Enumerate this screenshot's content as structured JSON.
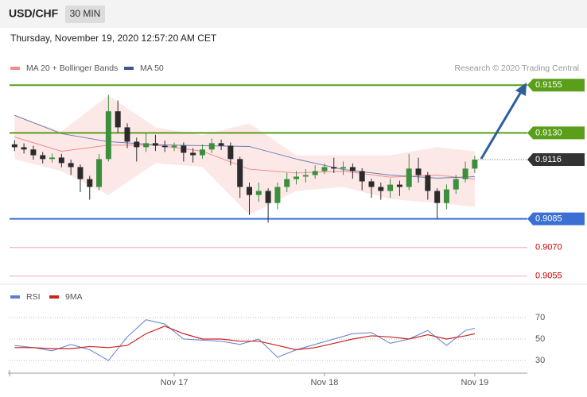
{
  "header": {
    "symbol": "USD/CHF",
    "interval": "30 MIN",
    "datetime": "Thursday, November 19, 2020 12:57:20 AM CET"
  },
  "chart_data": [
    {
      "type": "candlestick",
      "legend": [
        "MA 20 + Bollinger Bands",
        "MA 50"
      ],
      "legend_colors": [
        "#f08c8c",
        "#3a5a8c"
      ],
      "credit": "Research © 2020 Trading Central",
      "up_color": "#3c8f3c",
      "down_color": "#2b2b2b",
      "xlim": [
        -26.3,
        56.4
      ],
      "ylim": [
        0.9052,
        0.9158
      ],
      "x": [
        -25.5,
        -24,
        -22.5,
        -21,
        -19.5,
        -18,
        -16.5,
        -15,
        -13.5,
        -12,
        -10.5,
        -9,
        -7.5,
        -6,
        -4.5,
        -3,
        -1.5,
        0,
        1.5,
        3,
        4.5,
        6,
        7.5,
        9,
        10.5,
        12,
        13.5,
        15,
        16.5,
        18,
        19.5,
        21,
        22.5,
        24,
        25.5,
        27,
        28.5,
        30,
        31.5,
        33,
        34.5,
        36,
        37.5,
        39,
        40.5,
        42,
        43.5,
        45,
        46.5,
        48
      ],
      "candles": [
        [
          0.9124,
          0.91262,
          0.91205,
          0.91225
        ],
        [
          0.91225,
          0.91245,
          0.91192,
          0.91213
        ],
        [
          0.91213,
          0.91232,
          0.9116,
          0.91183
        ],
        [
          0.91183,
          0.912,
          0.9114,
          0.91163
        ],
        [
          0.91163,
          0.91192,
          0.91145,
          0.91171
        ],
        [
          0.91171,
          0.9119,
          0.9112,
          0.91142
        ],
        [
          0.91142,
          0.9116,
          0.9108,
          0.91121
        ],
        [
          0.91121,
          0.91135,
          0.9099,
          0.91058
        ],
        [
          0.91058,
          0.91075,
          0.9095,
          0.91017
        ],
        [
          0.91017,
          0.9119,
          0.91,
          0.91163
        ],
        [
          0.91163,
          0.915,
          0.9115,
          0.91413
        ],
        [
          0.91413,
          0.9147,
          0.913,
          0.91329
        ],
        [
          0.91329,
          0.9135,
          0.9122,
          0.91254
        ],
        [
          0.91254,
          0.91275,
          0.9115,
          0.91225
        ],
        [
          0.91225,
          0.913,
          0.912,
          0.91246
        ],
        [
          0.91246,
          0.9129,
          0.91205,
          0.91233
        ],
        [
          0.91233,
          0.9126,
          0.912,
          0.91225
        ],
        [
          0.91225,
          0.9125,
          0.91205,
          0.91233
        ],
        [
          0.91233,
          0.9125,
          0.9115,
          0.91196
        ],
        [
          0.91196,
          0.9122,
          0.91145,
          0.91183
        ],
        [
          0.91183,
          0.9124,
          0.91165,
          0.91213
        ],
        [
          0.91213,
          0.9127,
          0.91195,
          0.91246
        ],
        [
          0.91246,
          0.91265,
          0.9121,
          0.91233
        ],
        [
          0.91233,
          0.9125,
          0.9113,
          0.91163
        ],
        [
          0.91163,
          0.91175,
          0.9096,
          0.91017
        ],
        [
          0.91017,
          0.9104,
          0.9087,
          0.90975
        ],
        [
          0.90975,
          0.9104,
          0.9094,
          0.90996
        ],
        [
          0.90996,
          0.9101,
          0.9083,
          0.90933
        ],
        [
          0.90933,
          0.9104,
          0.909,
          0.91017
        ],
        [
          0.91017,
          0.9109,
          0.9099,
          0.91058
        ],
        [
          0.91058,
          0.911,
          0.9103,
          0.91071
        ],
        [
          0.91071,
          0.9111,
          0.9104,
          0.91079
        ],
        [
          0.91079,
          0.9113,
          0.9106,
          0.911
        ],
        [
          0.911,
          0.9114,
          0.91085,
          0.91121
        ],
        [
          0.91121,
          0.9117,
          0.9109,
          0.91113
        ],
        [
          0.91113,
          0.9115,
          0.9108,
          0.91121
        ],
        [
          0.91121,
          0.9114,
          0.9106,
          0.911
        ],
        [
          0.911,
          0.91115,
          0.91,
          0.91046
        ],
        [
          0.91046,
          0.9106,
          0.9096,
          0.91017
        ],
        [
          0.91017,
          0.9104,
          0.9095,
          0.90996
        ],
        [
          0.90996,
          0.9106,
          0.9096,
          0.91029
        ],
        [
          0.91029,
          0.9105,
          0.9097,
          0.91017
        ],
        [
          0.91017,
          0.9119,
          0.91,
          0.91113
        ],
        [
          0.91113,
          0.9117,
          0.9104,
          0.91079
        ],
        [
          0.91079,
          0.91095,
          0.9095,
          0.90996
        ],
        [
          0.90996,
          0.9101,
          0.9085,
          0.90933
        ],
        [
          0.90933,
          0.9103,
          0.909,
          0.91004
        ],
        [
          0.91004,
          0.9108,
          0.9098,
          0.91058
        ],
        [
          0.91058,
          0.9115,
          0.9104,
          0.91113
        ],
        [
          0.91113,
          0.9118,
          0.9109,
          0.9116
        ]
      ],
      "overlay_x": [
        -25.5,
        -18,
        -10.5,
        -3,
        4.5,
        12,
        19.5,
        27,
        34.5,
        42,
        48
      ],
      "bb_upper": [
        0.91392,
        0.91308,
        0.91496,
        0.91329,
        0.91288,
        0.9135,
        0.91183,
        0.91183,
        0.91183,
        0.91225,
        0.91204
      ],
      "bb_lower": [
        0.91163,
        0.911,
        0.90975,
        0.91142,
        0.91121,
        0.90871,
        0.90996,
        0.91017,
        0.90954,
        0.90933,
        0.90913
      ],
      "ma20": [
        0.91278,
        0.91204,
        0.91236,
        0.91236,
        0.91204,
        0.9111,
        0.9109,
        0.911,
        0.91068,
        0.91079,
        0.91058
      ],
      "ma50": [
        0.91392,
        0.91296,
        0.91254,
        0.91238,
        0.91233,
        0.91229,
        0.91163,
        0.91108,
        0.91079,
        0.91063,
        0.91071
      ],
      "levels": [
        {
          "value": 0.9155,
          "color": "#5a9e1a",
          "style": "box"
        },
        {
          "value": 0.913,
          "label": "0.9130",
          "color": "#5a9e1a",
          "style": "box"
        },
        {
          "value": 0.9116,
          "color": "#333333",
          "style": "current"
        },
        {
          "value": 0.9085,
          "color": "#3b6fd4",
          "style": "box"
        },
        {
          "value": 0.907,
          "label": "0.9070",
          "color": "#cc0000",
          "style": "text"
        },
        {
          "value": 0.9055,
          "color": "#cc0000",
          "style": "text"
        }
      ]
    },
    {
      "type": "line",
      "series": [
        {
          "name": "RSI",
          "color": "#5b7fd0"
        },
        {
          "name": "9MA",
          "color": "#cc2222"
        }
      ],
      "x": [
        -25.5,
        -22.5,
        -19.5,
        -16.5,
        -13.5,
        -10.5,
        -7.5,
        -4.5,
        -1.5,
        1.5,
        4.5,
        7.5,
        10.5,
        13.5,
        16.5,
        19.5,
        22.5,
        25.5,
        28.5,
        31.5,
        34.5,
        37.5,
        40.5,
        43.5,
        46.5,
        48
      ],
      "rsi": [
        44,
        42,
        39,
        45,
        40,
        30,
        52,
        68,
        64,
        50,
        49,
        48,
        45,
        50,
        33,
        40,
        45,
        50,
        55,
        56,
        46,
        50,
        58,
        44,
        58,
        60
      ],
      "ma9": [
        42,
        42,
        41,
        41,
        43,
        42,
        44,
        55,
        62,
        55,
        50,
        50,
        48,
        48,
        44,
        40,
        42,
        46,
        50,
        53,
        52,
        50,
        54,
        50,
        53,
        55
      ],
      "xlim": [
        -26.3,
        56.4
      ],
      "ylim": [
        20,
        80
      ],
      "yticks": [
        30,
        50,
        70
      ],
      "xticks": [
        {
          "value": 0,
          "label": "Nov 17"
        },
        {
          "value": 24,
          "label": "Nov 18"
        },
        {
          "value": 48,
          "label": "Nov 19"
        }
      ]
    }
  ]
}
